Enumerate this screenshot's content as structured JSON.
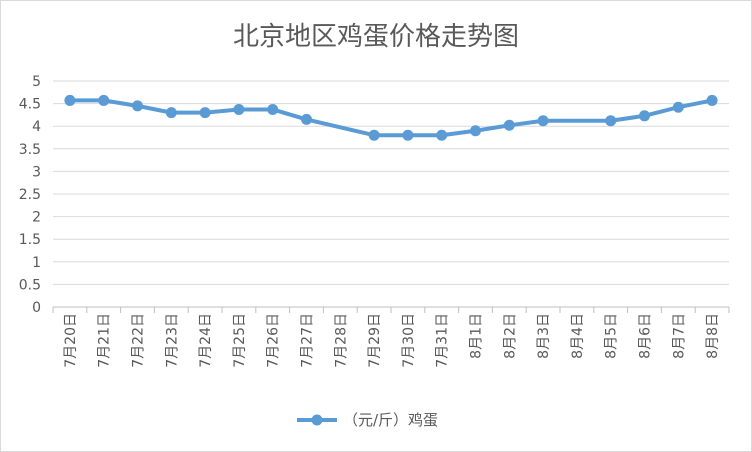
{
  "chart_data": {
    "type": "line",
    "title": "北京地区鸡蛋价格走势图",
    "xlabel": "",
    "ylabel": "",
    "categories": [
      "7月20日",
      "7月21日",
      "7月22日",
      "7月23日",
      "7月24日",
      "7月25日",
      "7月26日",
      "7月27日",
      "7月28日",
      "7月29日",
      "7月30日",
      "7月31日",
      "8月1日",
      "8月2日",
      "8月3日",
      "8月4日",
      "8月5日",
      "8月6日",
      "8月7日",
      "8月8日"
    ],
    "series": [
      {
        "name": "（元/斤）鸡蛋",
        "values": [
          4.57,
          4.57,
          4.45,
          4.3,
          4.3,
          4.37,
          4.37,
          4.15,
          null,
          3.8,
          3.8,
          3.8,
          3.9,
          4.02,
          4.12,
          null,
          4.12,
          4.23,
          4.42,
          4.57
        ],
        "color": "#5b9bd5"
      }
    ],
    "ylim": [
      0,
      5
    ],
    "yticks": [
      "0",
      "0.5",
      "1",
      "1.5",
      "2",
      "2.5",
      "3",
      "3.5",
      "4",
      "4.5",
      "5"
    ],
    "grid": true,
    "legend_position": "bottom"
  }
}
